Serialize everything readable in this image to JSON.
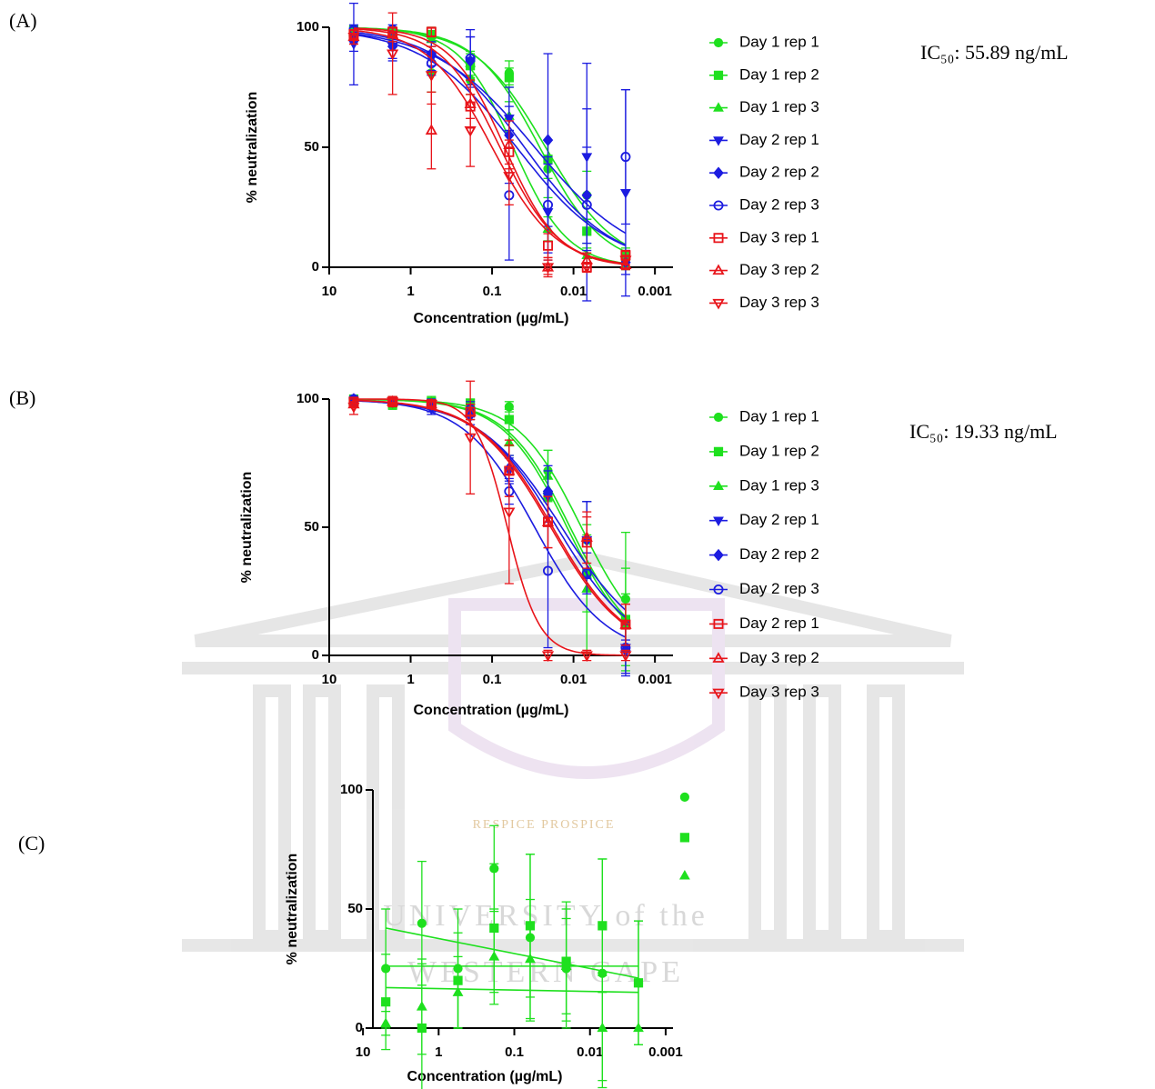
{
  "chart_data": [
    {
      "type": "scatter",
      "panel_label": "(A)",
      "annotation": "IC₅₀: 55.89 ng/mL",
      "x_label": "Concentration (µg/mL)",
      "y_label": "% neutralization",
      "log_x": true,
      "x": [
        5,
        1.667,
        0.556,
        0.185,
        0.0617,
        0.0206,
        0.00686,
        0.00229
      ],
      "xlim": [
        10,
        0.0006
      ],
      "xticks": [
        10,
        1,
        0.1,
        0.01,
        0.001
      ],
      "ylim": [
        0,
        100
      ],
      "yticks": [
        0,
        50,
        100
      ],
      "fit": {
        "model": "sigmoid",
        "bottom": 0,
        "top": 100
      },
      "series": [
        {
          "name": "Day 1 rep 1",
          "color": "#1ee01e",
          "marker": "circle",
          "open": false,
          "values": [
            98,
            97,
            81,
            78,
            81,
            41,
            30,
            3
          ],
          "errors": [
            2,
            3,
            8,
            6,
            5,
            12,
            10,
            3
          ],
          "fit": {
            "ic50": 0.022,
            "hill": 1
          }
        },
        {
          "name": "Day 1 rep 2",
          "color": "#1ee01e",
          "marker": "square",
          "open": false,
          "values": [
            99,
            98,
            97,
            84,
            79,
            45,
            15,
            5
          ],
          "errors": [
            1,
            2,
            3,
            5,
            4,
            8,
            5,
            3
          ],
          "fit": {
            "ic50": 0.026,
            "hill": 1.1
          }
        },
        {
          "name": "Day 1 rep 3",
          "color": "#1ee01e",
          "marker": "triangle",
          "open": false,
          "values": [
            98,
            97,
            95,
            85,
            63,
            16,
            5,
            1
          ],
          "errors": [
            2,
            2,
            3,
            5,
            6,
            5,
            3,
            2
          ],
          "fit": {
            "ic50": 0.055,
            "hill": 1.3
          }
        },
        {
          "name": "Day 2 rep 1",
          "color": "#1c1ce0",
          "marker": "triangle-down",
          "open": false,
          "values": [
            93,
            92,
            87,
            86,
            62,
            23,
            46,
            31
          ],
          "errors": [
            17,
            6,
            5,
            10,
            5,
            20,
            39,
            43
          ],
          "fit": {
            "ic50": 0.03,
            "hill": 0.7
          }
        },
        {
          "name": "Day 2 rep 2",
          "color": "#1c1ce0",
          "marker": "diamond",
          "open": false,
          "values": [
            95,
            92,
            89,
            86,
            55,
            53,
            30,
            2
          ],
          "errors": [
            5,
            5,
            5,
            10,
            20,
            36,
            20,
            5
          ],
          "fit": {
            "ic50": 0.04,
            "hill": 0.8
          }
        },
        {
          "name": "Day 2 rep 3",
          "color": "#1c1ce0",
          "marker": "circle",
          "open": true,
          "values": [
            99,
            99,
            85,
            87,
            30,
            26,
            26,
            46
          ],
          "errors": [
            2,
            2,
            5,
            12,
            27,
            20,
            40,
            28
          ],
          "fit": {
            "ic50": 0.05,
            "hill": 0.75
          }
        },
        {
          "name": "Day 3 rep 1",
          "color": "#e8141a",
          "marker": "square",
          "open": true,
          "values": [
            97,
            98,
            98,
            67,
            48,
            9,
            0,
            5
          ],
          "errors": [
            2,
            2,
            2,
            5,
            5,
            5,
            2,
            2
          ],
          "fit": {
            "ic50": 0.07,
            "hill": 1.3
          }
        },
        {
          "name": "Day 3 rep 2",
          "color": "#e8141a",
          "marker": "triangle",
          "open": true,
          "values": [
            96,
            97,
            57,
            68,
            51,
            0,
            3,
            1
          ],
          "errors": [
            3,
            3,
            16,
            10,
            10,
            3,
            3,
            2
          ],
          "fit": {
            "ic50": 0.08,
            "hill": 1.2
          }
        },
        {
          "name": "Day 3 rep 3",
          "color": "#e8141a",
          "marker": "triangle-down",
          "open": true,
          "values": [
            96,
            89,
            80,
            57,
            38,
            0,
            0,
            3
          ],
          "errors": [
            3,
            17,
            12,
            15,
            12,
            4,
            2,
            2
          ],
          "fit": {
            "ic50": 0.1,
            "hill": 1.1
          }
        }
      ]
    },
    {
      "type": "scatter",
      "panel_label": "(B)",
      "annotation": "IC₅₀: 19.33 ng/mL",
      "x_label": "Concentration (µg/mL)",
      "y_label": "% neutralization",
      "log_x": true,
      "x": [
        5,
        1.667,
        0.556,
        0.185,
        0.0617,
        0.0206,
        0.00686,
        0.00229
      ],
      "xlim": [
        10,
        0.0006
      ],
      "xticks": [
        10,
        1,
        0.1,
        0.01,
        0.001
      ],
      "ylim": [
        0,
        100
      ],
      "yticks": [
        0,
        50,
        100
      ],
      "fit": {
        "model": "sigmoid",
        "bottom": 0,
        "top": 100
      },
      "series": [
        {
          "name": "Day 1 rep 1",
          "color": "#1ee01e",
          "marker": "circle",
          "open": false,
          "values": [
            100,
            99,
            99,
            98,
            97,
            72,
            45,
            22
          ],
          "errors": [
            1,
            2,
            2,
            2,
            2,
            8,
            15,
            26
          ],
          "fit": {
            "ic50": 0.008,
            "hill": 1.1
          }
        },
        {
          "name": "Day 1 rep 2",
          "color": "#1ee01e",
          "marker": "square",
          "open": false,
          "values": [
            100,
            98,
            99,
            98,
            92,
            62,
            32,
            14
          ],
          "errors": [
            1,
            2,
            1,
            2,
            4,
            10,
            15,
            20
          ],
          "fit": {
            "ic50": 0.011,
            "hill": 1.1
          }
        },
        {
          "name": "Day 1 rep 3",
          "color": "#1ee01e",
          "marker": "triangle",
          "open": false,
          "values": [
            99,
            99,
            99,
            97,
            83,
            70,
            26,
            12
          ],
          "errors": [
            1,
            2,
            1,
            2,
            5,
            10,
            25,
            12
          ],
          "fit": {
            "ic50": 0.012,
            "hill": 1.1
          }
        },
        {
          "name": "Day 2 rep 1",
          "color": "#1c1ce0",
          "marker": "triangle-down",
          "open": false,
          "values": [
            99,
            99,
            96,
            93,
            72,
            62,
            45,
            3
          ],
          "errors": [
            1,
            1,
            2,
            3,
            5,
            10,
            15,
            10
          ],
          "fit": {
            "ic50": 0.014,
            "hill": 0.85
          }
        },
        {
          "name": "Day 2 rep 2",
          "color": "#1c1ce0",
          "marker": "diamond",
          "open": false,
          "values": [
            100,
            99,
            97,
            95,
            73,
            64,
            45,
            2
          ],
          "errors": [
            1,
            1,
            2,
            3,
            5,
            10,
            15,
            10
          ],
          "fit": {
            "ic50": 0.016,
            "hill": 0.9
          }
        },
        {
          "name": "Day 2 rep 3",
          "color": "#1c1ce0",
          "marker": "circle",
          "open": true,
          "values": [
            100,
            99,
            98,
            96,
            64,
            33,
            32,
            3
          ],
          "errors": [
            1,
            1,
            2,
            3,
            5,
            30,
            8,
            3
          ],
          "fit": {
            "ic50": 0.03,
            "hill": 1
          }
        },
        {
          "name": "Day 2 rep 1",
          "color": "#e8141a",
          "marker": "square",
          "open": true,
          "values": [
            99,
            99,
            98,
            95,
            72,
            52,
            44,
            12
          ],
          "errors": [
            1,
            1,
            1,
            3,
            10,
            10,
            10,
            8
          ],
          "fit": {
            "ic50": 0.018,
            "hill": 0.95
          }
        },
        {
          "name": "Day 3 rep 2",
          "color": "#e8141a",
          "marker": "triangle",
          "open": true,
          "values": [
            98,
            99,
            98,
            95,
            72,
            52,
            46,
            12
          ],
          "errors": [
            1,
            1,
            1,
            3,
            10,
            10,
            10,
            8
          ],
          "fit": {
            "ic50": 0.019,
            "hill": 0.95
          }
        },
        {
          "name": "Day 3 rep 3",
          "color": "#e8141a",
          "marker": "triangle-down",
          "open": true,
          "values": [
            97,
            99,
            98,
            85,
            56,
            0,
            0,
            0
          ],
          "errors": [
            3,
            2,
            1,
            22,
            28,
            2,
            2,
            2
          ],
          "fit": {
            "ic50": 0.065,
            "hill": 2.2
          }
        }
      ]
    },
    {
      "type": "scatter",
      "panel_label": "(C)",
      "x_label": "Concentration (µg/mL)",
      "y_label": "% neutralization",
      "log_x": true,
      "x": [
        5,
        1.667,
        0.556,
        0.185,
        0.0617,
        0.0206,
        0.00686,
        0.00229,
        0.00056
      ],
      "xlim": [
        7.4,
        0.0008
      ],
      "xticks": [
        10,
        1,
        0.1,
        0.01,
        0.001
      ],
      "ylim": [
        0,
        100
      ],
      "yticks": [
        0,
        50,
        100
      ],
      "fit": {
        "model": "linear"
      },
      "series": [
        {
          "color": "#1ee01e",
          "marker": "circle",
          "open": false,
          "values": [
            25,
            44,
            25,
            67,
            38,
            25,
            23,
            19,
            97
          ],
          "errors": [
            25,
            26,
            25,
            18,
            35,
            25,
            48,
            26,
            0
          ],
          "fit": {
            "x": [
              5,
              0.00229
            ],
            "y": [
              42,
              21
            ]
          }
        },
        {
          "color": "#1ee01e",
          "marker": "square",
          "open": false,
          "values": [
            11,
            0,
            20,
            42,
            43,
            28,
            43,
            19,
            80
          ],
          "errors": [
            20,
            27,
            20,
            27,
            30,
            25,
            28,
            26,
            0
          ],
          "fit": {
            "x": [
              5,
              0.00229
            ],
            "y": [
              26,
              26
            ]
          }
        },
        {
          "color": "#1ee01e",
          "marker": "triangle",
          "open": false,
          "values": [
            2,
            9,
            15,
            30,
            29,
            26,
            0,
            0,
            64
          ],
          "errors": [
            5,
            20,
            15,
            20,
            25,
            20,
            22,
            0,
            0
          ],
          "fit": {
            "x": [
              5,
              0.00229
            ],
            "y": [
              17,
              15
            ]
          }
        }
      ]
    }
  ],
  "watermark": {
    "motto": "RESPICE PROSPICE",
    "lines": [
      "UNIVERSITY of the",
      "WESTERN CAPE"
    ]
  }
}
